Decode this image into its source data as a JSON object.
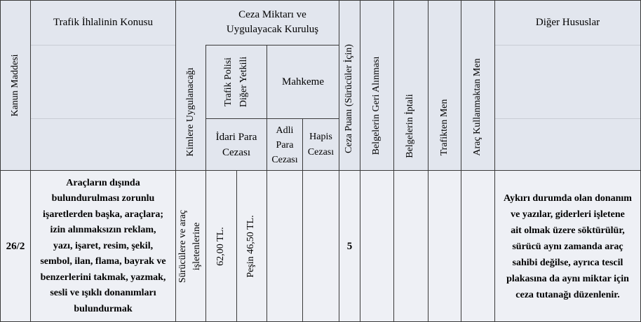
{
  "header": {
    "kanun_maddesi": "Kanun Maddesi",
    "ihlal_konusu": "Trafik İhlalinin Konusu",
    "kimlere": "Kimlere Uygulanacağı",
    "ceza_miktari_line1": "Ceza Miktarı ve",
    "ceza_miktari_line2": "Uygulayacak Kuruluş",
    "trafik_polisi_line1": "Trafik Polisi",
    "trafik_polisi_line2": "Diğer Yetkili",
    "mahkeme": "Mahkeme",
    "idari_para_line1": "İdari Para",
    "idari_para_line2": "Cezası",
    "adli_para_line1": "Adli",
    "adli_para_line2": "Para",
    "adli_para_line3": "Cezası",
    "hapis_line1": "Hapis",
    "hapis_line2": "Cezası",
    "ceza_puani": "Ceza Puanı (Sürücüler İçin)",
    "belge_geri": "Belgelerin Geri Alınması",
    "belge_iptal": "Belgelerin İptali",
    "trafikten_men": "Trafikten Men",
    "arac_kullanma_men": "Araç Kullanmaktan Men",
    "diger_hususlar": "Diğer Hususlar"
  },
  "row": {
    "madde": "26/2",
    "konu_lines": [
      "Araçların dışında",
      "bulundurulması zorunlu",
      "işaretlerden başka, araçlara;",
      "izin alınmaksızın reklam,",
      "yazı, işaret, resim, şekil,",
      "sembol, ilan, flama, bayrak ve",
      "benzerlerini takmak, yazmak,",
      "sesli ve ışıklı donanımları",
      "bulundurmak"
    ],
    "kimlere_line1": "Sürücülere ve araç",
    "kimlere_line2": "işletenlerine",
    "ceza_tutari": "62,00 TL.",
    "pesin_tutari": "Peşin 46,50 TL.",
    "ceza_puani": "5",
    "diger_lines": [
      "Aykırı durumda olan donanım",
      "ve yazılar, giderleri işletene",
      "ait olmak üzere söktürülür,",
      "sürücü aynı zamanda araç",
      "sahibi değilse, ayrıca tescil",
      "plakasına da aynı miktar için",
      "ceza tutanağı düzenlenir."
    ]
  }
}
